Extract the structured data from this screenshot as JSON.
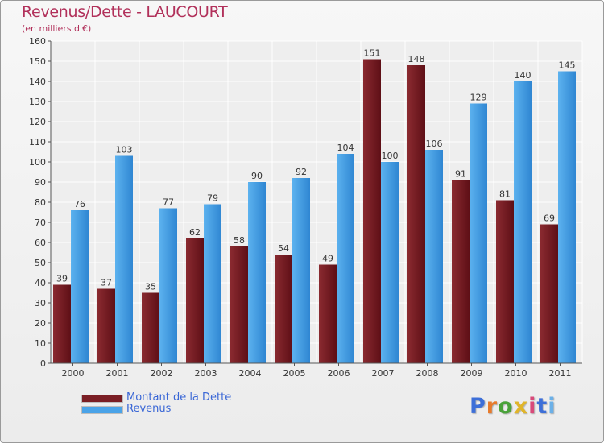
{
  "title": "Revenus/Dette - LAUCOURT",
  "subtitle": "(en milliers d'€)",
  "logo": {
    "text": "Proxiti",
    "letter_colors": [
      "#3d6fd8",
      "#e87a2b",
      "#4aa23a",
      "#e0b52a",
      "#d84a7a",
      "#3d6fd8",
      "#6bb0e8"
    ]
  },
  "chart_data": {
    "type": "bar",
    "title": "Revenus/Dette - LAUCOURT",
    "subtitle": "(en milliers d'€)",
    "xlabel": "",
    "ylabel": "",
    "ylim": [
      0,
      160
    ],
    "yticks": [
      0,
      10,
      20,
      30,
      40,
      50,
      60,
      70,
      80,
      90,
      100,
      110,
      120,
      130,
      140,
      150,
      160
    ],
    "grid": true,
    "legend": "bottom-left",
    "categories": [
      "2000",
      "2001",
      "2002",
      "2003",
      "2004",
      "2005",
      "2006",
      "2007",
      "2008",
      "2009",
      "2010",
      "2011"
    ],
    "series": [
      {
        "name": "Montant de la Dette",
        "color": "#7a1e24",
        "values": [
          39,
          37,
          35,
          62,
          58,
          54,
          49,
          151,
          148,
          91,
          81,
          69
        ]
      },
      {
        "name": "Revenus",
        "color": "#4aa3e8",
        "values": [
          76,
          103,
          77,
          79,
          90,
          92,
          104,
          100,
          106,
          129,
          140,
          145
        ]
      }
    ]
  }
}
